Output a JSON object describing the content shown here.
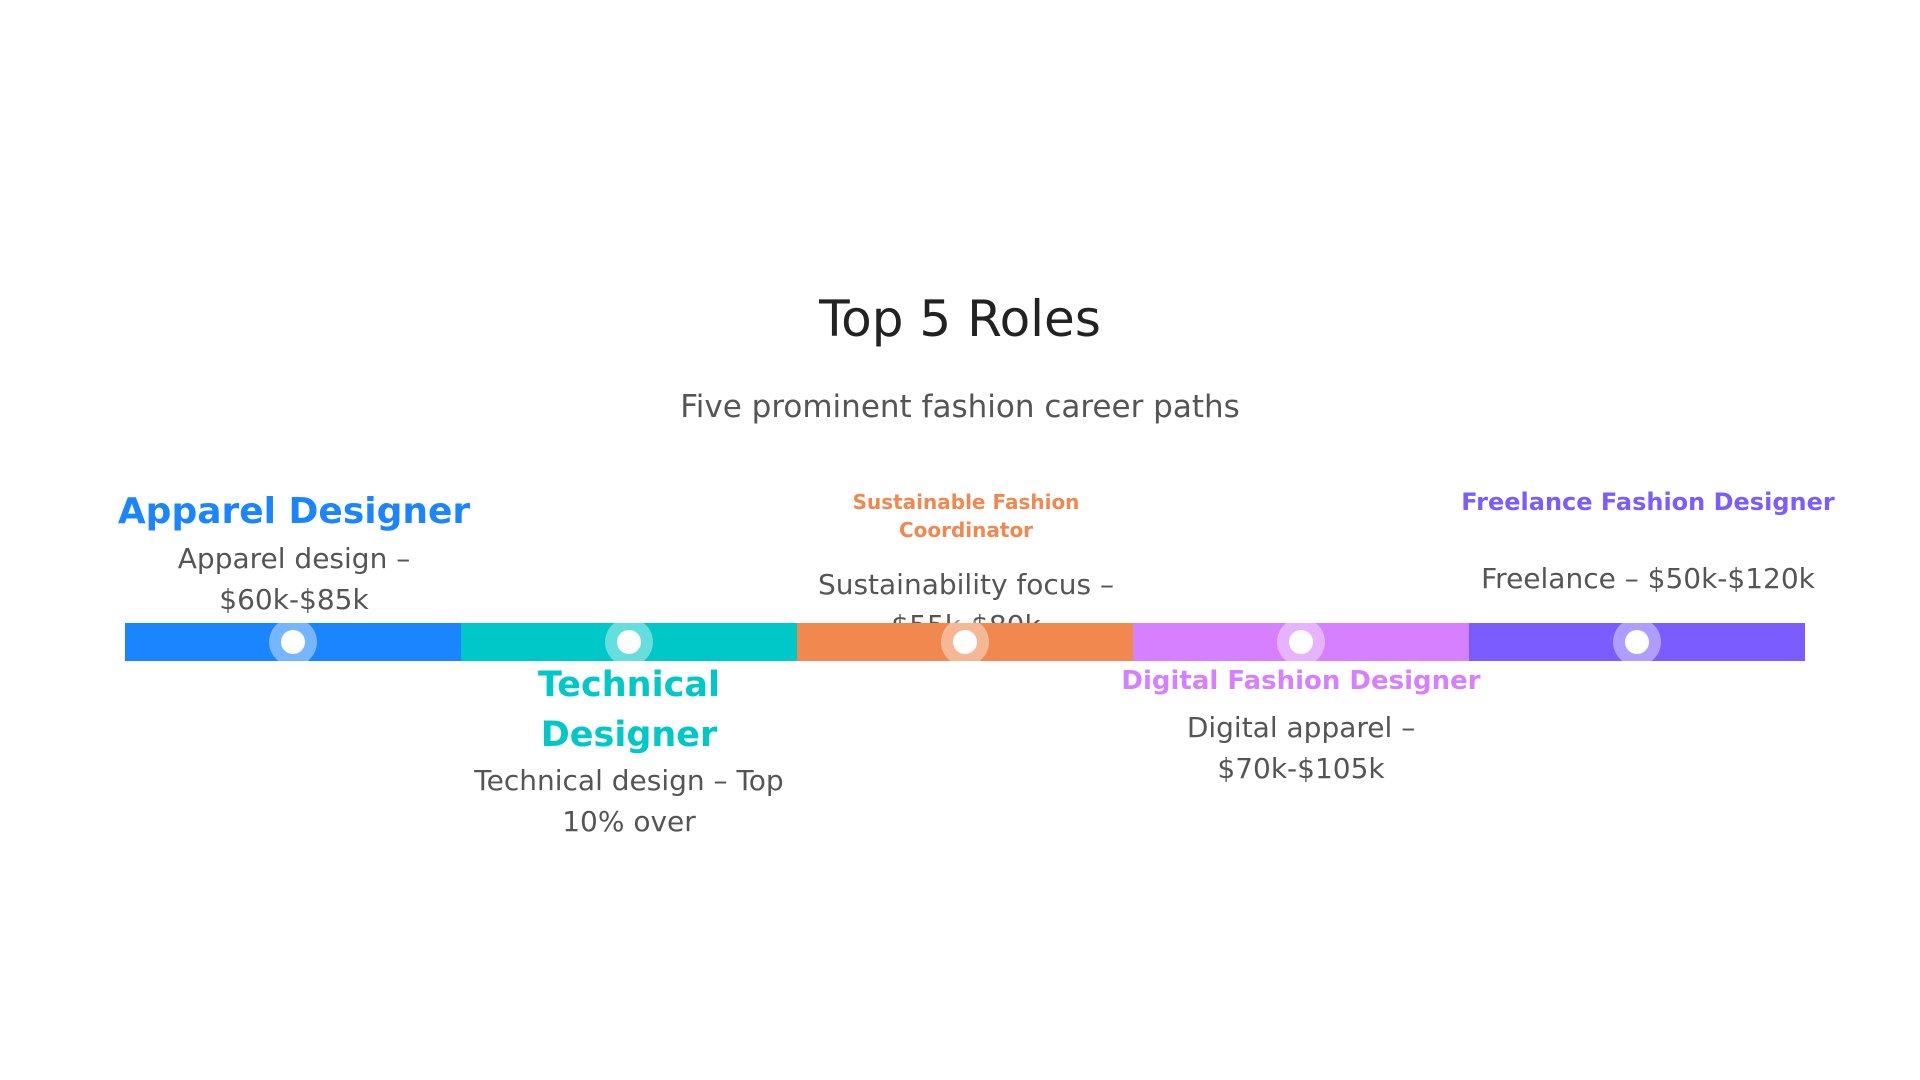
{
  "title": "Top 5 Roles",
  "subtitle": "Five prominent fashion career paths",
  "roles": [
    {
      "name": "Apparel Designer",
      "desc_line1": "Apparel design –",
      "desc_line2": "$60k-$85k",
      "color": "#1a85ff"
    },
    {
      "name": "Technical Designer",
      "desc_line1": "Technical design – Top",
      "desc_line2": "10% over",
      "color": "#00c8c8"
    },
    {
      "name": "Sustainable Fashion Coordinator",
      "desc_line1": "Sustainability focus –",
      "desc_line2": "$55k-$80k",
      "color": "#f0884f"
    },
    {
      "name": "Digital Fashion Designer",
      "desc_line1": "Digital apparel –",
      "desc_line2": "$70k-$105k",
      "color": "#d680ff"
    },
    {
      "name": "Freelance Fashion Designer",
      "desc_line1": "Freelance – $50k-$120k",
      "desc_line2": "",
      "color": "#7a5cff"
    }
  ]
}
